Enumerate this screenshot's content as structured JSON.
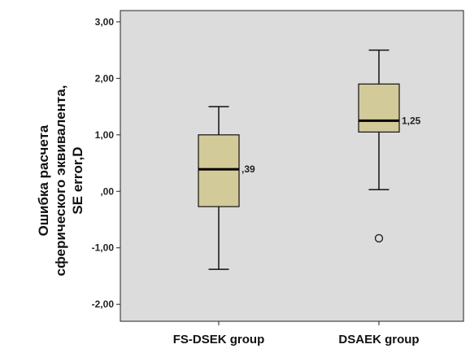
{
  "chart_data": {
    "type": "boxplot",
    "ylabel_lines": [
      "Ошибка расчета",
      "сферического эквивалента,",
      "SE error,D"
    ],
    "ylim": [
      -2.3,
      3.2
    ],
    "yticks": [
      3,
      2,
      1,
      0,
      -1,
      -2
    ],
    "ytick_labels": [
      "3,00",
      "2,00",
      "1,00",
      ",00",
      "-1,00",
      "-2,00"
    ],
    "categories": [
      "FS-DSEK group",
      "DSAEK group"
    ],
    "boxes": [
      {
        "name": "FS-DSEK group",
        "whisker_low": -1.38,
        "q1": -0.27,
        "median": 0.39,
        "q3": 1.0,
        "whisker_high": 1.5,
        "median_label": ",39",
        "outliers": []
      },
      {
        "name": "DSAEK group",
        "whisker_low": 0.03,
        "q1": 1.05,
        "median": 1.25,
        "q3": 1.9,
        "whisker_high": 2.5,
        "median_label": "1,25",
        "outliers": [
          -0.83
        ]
      }
    ],
    "box_fill": "#d3ca99",
    "plot_background": "#dcdcdc",
    "grid": false
  }
}
